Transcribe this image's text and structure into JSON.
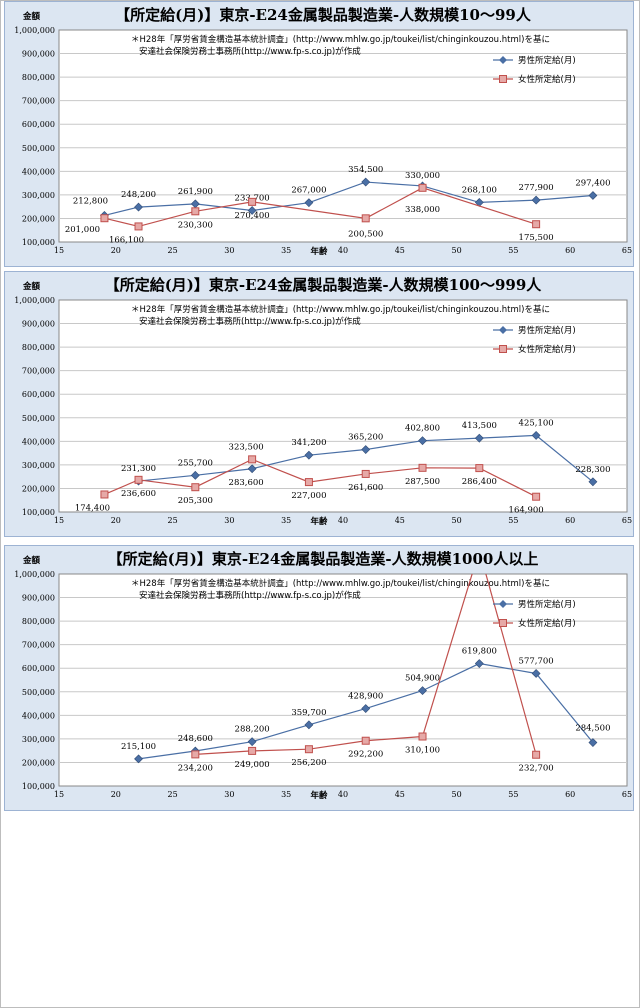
{
  "chart_data": [
    {
      "type": "line",
      "title": "【所定給(月)】東京-E24金属製品製造業-人数規模10～99人",
      "note": [
        "＊H28年「厚労省賃金構造基本統計調査」(http://www.mhlw.go.jp/toukei/list/chinginkouzou.html)を基に",
        "安達社会保険労務士事務所(http://www.fp-s.co.jp)が作成"
      ],
      "ylabel": "金額",
      "xlabel": "年齢",
      "xlim": [
        15,
        65
      ],
      "ylim": [
        100000,
        1000000
      ],
      "xticks": [
        "15",
        "20",
        "25",
        "30",
        "35",
        "40",
        "45",
        "50",
        "55",
        "60",
        "65"
      ],
      "yticks": [
        "100,000",
        "200,000",
        "300,000",
        "400,000",
        "500,000",
        "600,000",
        "700,000",
        "800,000",
        "900,000",
        "1,000,000"
      ],
      "grid": true,
      "legend_position": "top-right",
      "series": [
        {
          "name": "男性所定給(月)",
          "color": "#4a6fa5",
          "marker": "diamond",
          "x": [
            19,
            22,
            27,
            32,
            37,
            42,
            47,
            52,
            57,
            62
          ],
          "values": [
            212800,
            248200,
            261900,
            233700,
            267000,
            354500,
            338000,
            268100,
            277900,
            297400
          ],
          "labels": [
            "212,800",
            "248,200",
            "261,900",
            "233,700",
            "267,000",
            "354,500",
            "338,000",
            "268,100",
            "277,900",
            "297,400"
          ]
        },
        {
          "name": "女性所定給(月)",
          "color": "#c0504d",
          "marker": "square",
          "x": [
            19,
            22,
            27,
            32,
            42,
            47,
            57
          ],
          "values": [
            201000,
            166100,
            230300,
            270400,
            200500,
            330000,
            175500
          ],
          "labels": [
            "201,000",
            "166,100",
            "230,300",
            "270,400",
            "200,500",
            "330,000",
            "175,500"
          ]
        }
      ]
    },
    {
      "type": "line",
      "title": "【所定給(月)】東京-E24金属製品製造業-人数規模100～999人",
      "note": [
        "＊H28年「厚労省賃金構造基本統計調査」(http://www.mhlw.go.jp/toukei/list/chinginkouzou.html)を基に",
        "安達社会保険労務士事務所(http://www.fp-s.co.jp)が作成"
      ],
      "ylabel": "金額",
      "xlabel": "年齢",
      "xlim": [
        15,
        65
      ],
      "ylim": [
        100000,
        1000000
      ],
      "xticks": [
        "15",
        "20",
        "25",
        "30",
        "35",
        "40",
        "45",
        "50",
        "55",
        "60",
        "65"
      ],
      "yticks": [
        "100,000",
        "200,000",
        "300,000",
        "400,000",
        "500,000",
        "600,000",
        "700,000",
        "800,000",
        "900,000",
        "1,000,000"
      ],
      "grid": true,
      "legend_position": "top-right",
      "series": [
        {
          "name": "男性所定給(月)",
          "color": "#4a6fa5",
          "marker": "diamond",
          "x": [
            22,
            27,
            32,
            37,
            42,
            47,
            52,
            57,
            62
          ],
          "values": [
            231300,
            255700,
            283600,
            341200,
            365200,
            402800,
            413500,
            425100,
            228300
          ],
          "labels": [
            "231,300",
            "255,700",
            "283,600",
            "341,200",
            "365,200",
            "402,800",
            "413,500",
            "425,100",
            "228,300"
          ]
        },
        {
          "name": "女性所定給(月)",
          "color": "#c0504d",
          "marker": "square",
          "x": [
            19,
            22,
            27,
            32,
            37,
            42,
            47,
            52,
            57
          ],
          "values": [
            174400,
            236600,
            205300,
            323500,
            227000,
            261600,
            287500,
            286400,
            164900
          ],
          "labels": [
            "174,400",
            "236,600",
            "205,300",
            "323,500",
            "227,000",
            "261,600",
            "287,500",
            "286,400",
            "164,900"
          ]
        }
      ]
    },
    {
      "type": "line",
      "title": "【所定給(月)】東京-E24金属製品製造業-人数規模1000人以上",
      "note": [
        "＊H28年「厚労省賃金構造基本統計調査」(http://www.mhlw.go.jp/toukei/list/chinginkouzou.html)を基に",
        "安達社会保険労務士事務所(http://www.fp-s.co.jp)が作成"
      ],
      "ylabel": "金額",
      "xlabel": "年齢",
      "xlim": [
        15,
        65
      ],
      "ylim": [
        100000,
        1000000
      ],
      "xticks": [
        "15",
        "20",
        "25",
        "30",
        "35",
        "40",
        "45",
        "50",
        "55",
        "60",
        "65"
      ],
      "yticks": [
        "100,000",
        "200,000",
        "300,000",
        "400,000",
        "500,000",
        "600,000",
        "700,000",
        "800,000",
        "900,000",
        "1,000,000"
      ],
      "grid": true,
      "legend_position": "top-right",
      "series": [
        {
          "name": "男性所定給(月)",
          "color": "#4a6fa5",
          "marker": "diamond",
          "x": [
            22,
            27,
            32,
            37,
            42,
            47,
            52,
            57,
            62
          ],
          "values": [
            215100,
            248600,
            288200,
            359700,
            428900,
            504900,
            619800,
            577700,
            284500
          ],
          "labels": [
            "215,100",
            "248,600",
            "288,200",
            "359,700",
            "428,900",
            "504,900",
            "619,800",
            "577,700",
            "284,500"
          ]
        },
        {
          "name": "女性所定給(月)",
          "color": "#c0504d",
          "marker": "square",
          "x": [
            27,
            32,
            37,
            42,
            47,
            52,
            57
          ],
          "values": [
            234200,
            249000,
            256200,
            292200,
            310100,
            1100000,
            232700
          ],
          "labels": [
            "234,200",
            "249,000",
            "256,200",
            "292,200",
            "310,100",
            "",
            "232,700"
          ]
        }
      ]
    }
  ]
}
